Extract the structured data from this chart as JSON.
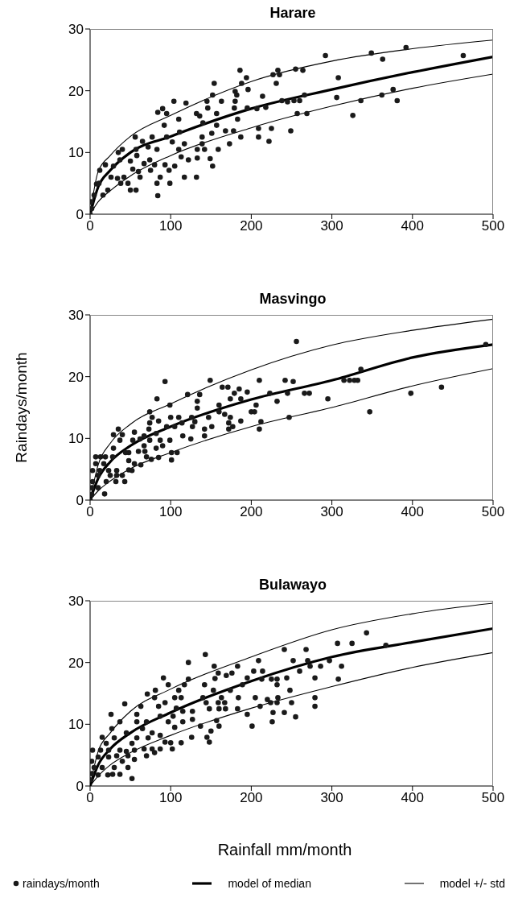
{
  "chart_data": [
    {
      "type": "scatter",
      "title": "Harare",
      "xlim": [
        0,
        500
      ],
      "xticks": [
        0,
        100,
        200,
        300,
        400,
        500
      ],
      "ylim": [
        0,
        30
      ],
      "yticks": [
        0,
        10,
        20,
        30
      ],
      "grid": false,
      "series": [
        {
          "type": "scatter",
          "color": "#1a1a1a",
          "marker": "circle",
          "x": [
            463,
            392,
            349,
            363,
            292,
            308,
            306,
            336,
            326,
            362,
            376,
            381,
            255,
            264,
            233,
            227,
            235,
            231,
            266,
            238,
            245,
            253,
            260,
            257,
            269,
            249,
            214,
            218,
            207,
            225,
            222,
            209,
            209,
            186,
            194,
            188,
            196,
            180,
            182,
            180,
            179,
            195,
            183,
            178,
            187,
            173,
            154,
            152,
            145,
            163,
            146,
            157,
            140,
            157,
            168,
            151,
            139,
            139,
            142,
            159,
            149,
            152,
            133,
            133,
            132,
            132,
            136,
            104,
            119,
            90,
            84,
            95,
            110,
            92,
            95,
            102,
            111,
            117,
            110,
            113,
            122,
            105,
            98,
            93,
            117,
            99,
            87,
            83,
            84,
            56,
            77,
            65,
            72,
            40,
            35,
            57,
            83,
            37,
            74,
            19,
            29,
            12,
            50,
            67,
            75,
            60,
            80,
            26,
            34,
            42,
            47,
            62,
            8,
            11,
            50,
            57,
            22,
            16,
            5,
            1,
            0,
            2,
            38,
            53,
            58
          ],
          "values": [
            25.7,
            27,
            26.1,
            25.1,
            25.7,
            22.1,
            18.9,
            18.4,
            16,
            19.3,
            20.2,
            18.4,
            23.5,
            23.3,
            23.3,
            22.6,
            22.6,
            21.2,
            19.3,
            18.4,
            18.2,
            18.4,
            18.4,
            16.3,
            16.3,
            13.5,
            19.1,
            17.3,
            17.1,
            13.9,
            11.8,
            13.9,
            12.5,
            23.3,
            22.1,
            21.2,
            20.2,
            19.9,
            19.3,
            18.3,
            17.2,
            17.2,
            15.4,
            13.5,
            12.5,
            11.4,
            21.2,
            19.3,
            18.3,
            18.3,
            17.2,
            16.3,
            14.8,
            14.4,
            13.5,
            13.1,
            12.5,
            11.4,
            10.5,
            10.5,
            9,
            7.8,
            10.5,
            9.1,
            6,
            16.3,
            15.9,
            18.3,
            18,
            17.1,
            16.5,
            16.3,
            15.4,
            14.4,
            12.5,
            11.7,
            13.3,
            11.4,
            10.5,
            9.3,
            8.8,
            7.8,
            7.1,
            8,
            6,
            5,
            6,
            5,
            3,
            12.5,
            12.5,
            11.8,
            10.9,
            10.5,
            10,
            10.5,
            10.5,
            8.8,
            8.8,
            8,
            7.8,
            7.1,
            8.6,
            8.2,
            7.1,
            6.9,
            8,
            6,
            5.8,
            6,
            5,
            6,
            4.9,
            5,
            3.9,
            3.9,
            3.9,
            3.1,
            3.1,
            2,
            0,
            0.9,
            5,
            7.3,
            9.5
          ]
        },
        {
          "type": "line",
          "color": "#000000",
          "marker": "none",
          "x": [
            0,
            10,
            25,
            50,
            100,
            200,
            300,
            400,
            500
          ],
          "values": [
            0,
            4.4,
            7.1,
            10,
            12.6,
            17.1,
            20.2,
            23,
            25.5
          ]
        },
        {
          "type": "line",
          "color": "#000000",
          "marker": "none",
          "x": [
            0,
            10,
            25,
            50,
            100,
            200,
            300,
            400,
            500
          ],
          "values": [
            0,
            6.9,
            9.5,
            12.6,
            16,
            21.5,
            24.8,
            26.8,
            28.2
          ]
        },
        {
          "type": "line",
          "color": "#000000",
          "marker": "none",
          "x": [
            0,
            10,
            25,
            50,
            100,
            200,
            300,
            400,
            500
          ],
          "values": [
            0,
            2,
            3.8,
            6.2,
            9.5,
            14,
            17.5,
            20.4,
            22.7
          ]
        }
      ]
    },
    {
      "type": "scatter",
      "title": "Masvingo",
      "ylabel": "Raindays/month",
      "xlim": [
        0,
        500
      ],
      "xticks": [
        0,
        100,
        200,
        300,
        400,
        500
      ],
      "ylim": [
        0,
        30
      ],
      "yticks": [
        0,
        10,
        20,
        30
      ],
      "grid": false,
      "series": [
        {
          "type": "scatter",
          "color": "#1a1a1a",
          "marker": "circle",
          "x": [
            491,
            256,
            336,
            315,
            322,
            328,
            332,
            436,
            398,
            347,
            295,
            242,
            252,
            210,
            245,
            266,
            272,
            223,
            232,
            247,
            210,
            212,
            206,
            200,
            204,
            195,
            185,
            179,
            171,
            164,
            174,
            187,
            160,
            160,
            167,
            174,
            187,
            172,
            177,
            172,
            149,
            136,
            121,
            133,
            133,
            147,
            151,
            142,
            142,
            93,
            83,
            99,
            74,
            77,
            85,
            74,
            100,
            110,
            126,
            130,
            114,
            95,
            105,
            127,
            73,
            115,
            125,
            99,
            82,
            67,
            55,
            35,
            40,
            29,
            37,
            53,
            74,
            62,
            87,
            67,
            82,
            90,
            60,
            68,
            70,
            76,
            85,
            101,
            108,
            101,
            48,
            44,
            29,
            28,
            19,
            13,
            7,
            48,
            55,
            63,
            48,
            52,
            33,
            17,
            7,
            3,
            12,
            23,
            33,
            40,
            25,
            10,
            20,
            32,
            43,
            3,
            10,
            2,
            18,
            0,
            2
          ],
          "values": [
            25.2,
            25.7,
            21.2,
            19.4,
            19.4,
            19.4,
            19.4,
            18.3,
            17.3,
            14.3,
            16.4,
            19.4,
            19.2,
            19.4,
            17.3,
            17.3,
            17.3,
            17.3,
            16,
            13.4,
            11.5,
            12.7,
            15.4,
            14.3,
            14.3,
            17.5,
            18,
            17.3,
            18.3,
            18.3,
            16.4,
            16.4,
            15.4,
            14.3,
            13.9,
            13.4,
            12.8,
            12.5,
            11.9,
            11.5,
            19.4,
            17.1,
            17.1,
            16,
            14.9,
            13.4,
            11.9,
            11.5,
            10.4,
            19.2,
            16.4,
            15.4,
            14.3,
            13.4,
            12.8,
            12.5,
            13.4,
            13.4,
            13.4,
            12.7,
            12.5,
            11.9,
            11.9,
            11.9,
            11.5,
            10.4,
            9.9,
            9.7,
            10.8,
            10.4,
            11,
            11.5,
            10.6,
            10.6,
            9.7,
            9.7,
            9.7,
            9.9,
            9.7,
            8.8,
            8.4,
            8.8,
            7.9,
            7.9,
            7,
            6.6,
            6.9,
            7.7,
            7.7,
            6.5,
            7.7,
            7.7,
            8.4,
            7,
            7,
            7,
            7,
            6.4,
            5.9,
            5.7,
            4.9,
            4.8,
            4.8,
            5.9,
            5.9,
            4.8,
            4.8,
            4.8,
            4,
            4,
            4,
            4,
            3,
            3,
            3,
            3,
            2,
            2,
            1,
            0,
            0.9
          ]
        },
        {
          "type": "line",
          "color": "#000000",
          "marker": "none",
          "x": [
            0,
            10,
            25,
            50,
            100,
            200,
            300,
            400,
            500
          ],
          "values": [
            0,
            3.5,
            6.2,
            8.8,
            11.9,
            16.3,
            19.4,
            23.1,
            25.2
          ]
        },
        {
          "type": "line",
          "color": "#000000",
          "marker": "none",
          "x": [
            0,
            10,
            25,
            50,
            100,
            200,
            300,
            400,
            500
          ],
          "values": [
            0,
            5.7,
            9.2,
            12.3,
            15.6,
            21.1,
            25.1,
            27.5,
            29.3
          ]
        },
        {
          "type": "line",
          "color": "#000000",
          "marker": "none",
          "x": [
            0,
            10,
            25,
            50,
            100,
            200,
            300,
            400,
            500
          ],
          "values": [
            0,
            1.5,
            3.1,
            5.1,
            7.7,
            11.9,
            15,
            18.5,
            21.3
          ]
        }
      ]
    },
    {
      "type": "scatter",
      "title": "Bulawayo",
      "xlabel": "Rainfall mm/month",
      "legend": "bottom",
      "xlim": [
        0,
        500
      ],
      "xticks": [
        0,
        100,
        200,
        300,
        400,
        500
      ],
      "ylim": [
        0,
        30
      ],
      "yticks": [
        0,
        10,
        20,
        30
      ],
      "grid": false,
      "series": [
        {
          "name": "raindays/month",
          "type": "scatter",
          "color": "#1a1a1a",
          "marker": "circle",
          "x": [
            343,
            367,
            307,
            325,
            297,
            312,
            308,
            241,
            268,
            252,
            270,
            273,
            286,
            260,
            244,
            279,
            214,
            209,
            203,
            213,
            225,
            232,
            232,
            248,
            195,
            189,
            183,
            176,
            169,
            159,
            154,
            143,
            122,
            91,
            97,
            122,
            117,
            110,
            142,
            155,
            153,
            174,
            81,
            71,
            80,
            63,
            85,
            93,
            105,
            113,
            140,
            184,
            163,
            205,
            233,
            279,
            220,
            224,
            232,
            250,
            144,
            159,
            167,
            148,
            160,
            168,
            183,
            211,
            279,
            241,
            227,
            195,
            226,
            255,
            201,
            43,
            58,
            26,
            37,
            58,
            27,
            45,
            65,
            87,
            97,
            105,
            115,
            127,
            107,
            127,
            115,
            103,
            70,
            77,
            87,
            72,
            58,
            52,
            15,
            20,
            30,
            93,
            102,
            113,
            126,
            137,
            145,
            148,
            150,
            157,
            160,
            100,
            3,
            13,
            23,
            37,
            45,
            55,
            67,
            77,
            87,
            70,
            80,
            47,
            33,
            23,
            10,
            55,
            40,
            2,
            5,
            15,
            30,
            47,
            22,
            10,
            2,
            28,
            37,
            52,
            0
          ],
          "values": [
            24.8,
            22.8,
            23.1,
            23.1,
            20.3,
            19.4,
            17.3,
            22.1,
            22.1,
            20.3,
            20.3,
            19.4,
            19.4,
            18.6,
            17.5,
            17.5,
            18.6,
            20.3,
            18.6,
            17.3,
            17.3,
            17.3,
            16.4,
            15.5,
            17.5,
            16.4,
            19.4,
            18.3,
            17.9,
            18.3,
            19.4,
            21.3,
            20,
            17.5,
            16.4,
            17.3,
            16.4,
            15.5,
            16.4,
            17.4,
            15.5,
            15.5,
            15.5,
            14.9,
            14.3,
            12.9,
            12.9,
            13.5,
            14.3,
            14.3,
            14.3,
            14.3,
            14.3,
            14.3,
            14.3,
            14.3,
            14,
            13.5,
            13.5,
            13.5,
            13.5,
            13.5,
            13.5,
            12.5,
            12.5,
            12.5,
            12.5,
            12.9,
            12.9,
            11.9,
            11.9,
            11.6,
            10.4,
            11.2,
            9.7,
            13.3,
            11.6,
            11.6,
            10.4,
            10.4,
            9.3,
            8.6,
            9.3,
            11.3,
            10.4,
            9.5,
            10.4,
            10.8,
            12.6,
            12.1,
            12.1,
            11.3,
            10.4,
            8.6,
            8.2,
            7.8,
            7.8,
            6.9,
            7.9,
            6.9,
            7.8,
            7.1,
            6,
            7,
            7.9,
            9.7,
            7.9,
            7.1,
            8.9,
            10.6,
            9.7,
            7,
            5.8,
            5.8,
            5.8,
            5.8,
            5.6,
            5.8,
            6,
            6,
            6,
            4.9,
            5.4,
            4.9,
            4.9,
            4.7,
            4.7,
            4.3,
            4,
            4,
            3,
            3,
            3,
            3,
            1.8,
            1.8,
            2,
            1.9,
            1.9,
            1.2,
            1
          ]
        },
        {
          "name": "model of median",
          "type": "line",
          "color": "#000000",
          "marker": "none",
          "x": [
            0,
            10,
            25,
            50,
            100,
            200,
            300,
            400,
            500
          ],
          "values": [
            0,
            3.4,
            6,
            8.6,
            11.9,
            17,
            20.9,
            23.3,
            25.5
          ]
        },
        {
          "name": "model +/- std",
          "type": "line",
          "color": "#000000",
          "marker": "none",
          "x": [
            0,
            10,
            25,
            50,
            100,
            200,
            300,
            400,
            500
          ],
          "values": [
            0,
            5.6,
            8.6,
            12.1,
            15.7,
            20.9,
            25.3,
            27.9,
            29.6
          ]
        },
        {
          "type": "line",
          "color": "#000000",
          "marker": "none",
          "x": [
            0,
            10,
            25,
            50,
            100,
            200,
            300,
            400,
            500
          ],
          "values": [
            0,
            1.6,
            3.4,
            5.4,
            8.2,
            12.6,
            16.1,
            19.2,
            21.6
          ]
        }
      ]
    }
  ]
}
